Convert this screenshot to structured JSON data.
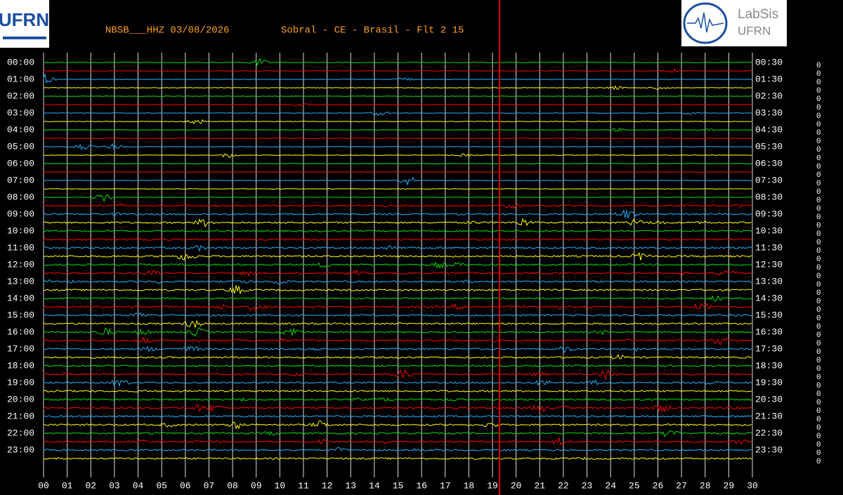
{
  "chart_data": {
    "type": "helicorder",
    "station": "NBSB___HHZ 03/08/2026",
    "location": "Sobral - CE - Brasil - Flt 2 15",
    "logo_left": "UFRN",
    "logo_right": {
      "title": "LabSis",
      "subtitle": "UFRN"
    },
    "left_labels": [
      "00:00",
      "01:00",
      "02:00",
      "03:00",
      "04:00",
      "05:00",
      "06:00",
      "07:00",
      "08:00",
      "09:00",
      "10:00",
      "11:00",
      "12:00",
      "13:00",
      "14:00",
      "15:00",
      "16:00",
      "17:00",
      "18:00",
      "19:00",
      "20:00",
      "21:00",
      "22:00",
      "23:00"
    ],
    "right_labels": [
      "00:30",
      "01:30",
      "02:30",
      "03:30",
      "04:30",
      "05:30",
      "06:30",
      "07:30",
      "08:30",
      "09:30",
      "10:30",
      "11:30",
      "12:30",
      "13:30",
      "14:30",
      "15:30",
      "16:30",
      "17:30",
      "18:30",
      "19:30",
      "20:30",
      "21:30",
      "22:30",
      "23:30"
    ],
    "row_end_values": [
      0,
      0,
      0,
      0,
      0,
      0,
      0,
      0,
      0,
      0,
      0,
      0,
      0,
      0,
      0,
      0,
      0,
      0,
      0,
      0,
      0,
      0,
      0,
      0,
      0,
      0,
      0,
      0,
      0,
      0,
      0,
      0,
      0,
      0,
      0,
      0,
      0,
      0,
      0,
      0,
      0,
      0,
      0,
      0,
      0,
      0,
      0,
      0
    ],
    "trace_colors": [
      "#00e000",
      "#ff0000",
      "#20b0ff",
      "#ffff00"
    ],
    "xlim": [
      0,
      30
    ],
    "xticks": [
      {
        "value": 0,
        "label": "00"
      },
      {
        "value": 1,
        "label": "01"
      },
      {
        "value": 2,
        "label": "02"
      },
      {
        "value": 3,
        "label": "03"
      },
      {
        "value": 4,
        "label": "04"
      },
      {
        "value": 5,
        "label": "05"
      },
      {
        "value": 6,
        "label": "06"
      },
      {
        "value": 7,
        "label": "07"
      },
      {
        "value": 8,
        "label": "08"
      },
      {
        "value": 9,
        "label": "09"
      },
      10,
      11,
      12,
      13,
      14,
      15,
      16,
      17,
      18,
      19,
      20,
      21,
      22,
      23,
      24,
      25,
      26,
      27,
      28,
      29,
      30
    ],
    "marker_minute": 19.3,
    "marker_color": "#e00000",
    "grid": true
  }
}
